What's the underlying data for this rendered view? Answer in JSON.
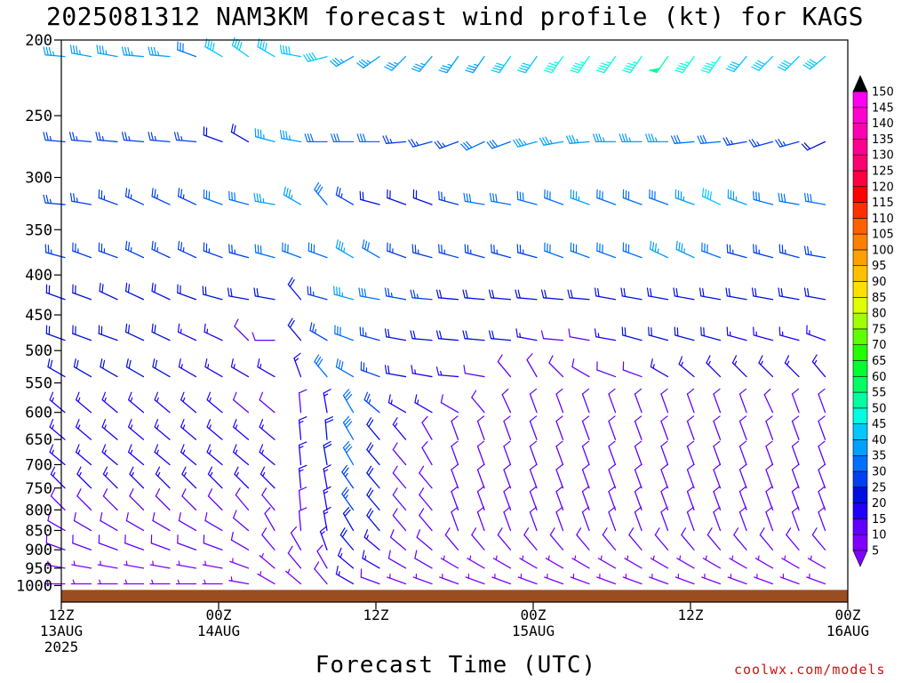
{
  "chart_data": {
    "type": "wind-profile",
    "title": "2025081312 NAM3KM forecast wind profile (kt) for KAGS",
    "xlabel": "Forecast Time (UTC)",
    "ylabel": "",
    "credit": "coolwx.com/models",
    "y_ticks": [
      200,
      250,
      300,
      350,
      400,
      450,
      500,
      550,
      600,
      650,
      700,
      750,
      800,
      850,
      900,
      950,
      1000
    ],
    "ylim": [
      200,
      1050
    ],
    "y_scale": "log-pressure",
    "x_ticks": [
      {
        "hour": 0,
        "line1": "12Z",
        "line2": "13AUG",
        "line3": "2025"
      },
      {
        "hour": 12,
        "line1": "00Z",
        "line2": "14AUG",
        "line3": ""
      },
      {
        "hour": 24,
        "line1": "12Z",
        "line2": "",
        "line3": ""
      },
      {
        "hour": 36,
        "line1": "00Z",
        "line2": "15AUG",
        "line3": ""
      },
      {
        "hour": 48,
        "line1": "12Z",
        "line2": "",
        "line3": ""
      },
      {
        "hour": 60,
        "line1": "00Z",
        "line2": "16AUG",
        "line3": ""
      }
    ],
    "xlim": [
      0,
      60
    ],
    "colorbar": {
      "values": [
        5,
        10,
        15,
        20,
        25,
        30,
        35,
        40,
        45,
        50,
        55,
        60,
        65,
        70,
        75,
        80,
        85,
        90,
        95,
        100,
        105,
        110,
        115,
        120,
        125,
        130,
        135,
        140,
        145,
        150
      ],
      "colors": [
        "#8000ff",
        "#6000ff",
        "#2000ff",
        "#0010e0",
        "#0040f0",
        "#0070ff",
        "#00a0ff",
        "#00c8ff",
        "#00ffe0",
        "#00ffa0",
        "#00ff60",
        "#00ff30",
        "#20ff00",
        "#60ff00",
        "#a0ff00",
        "#e0ff00",
        "#ffe000",
        "#ffc000",
        "#ffa000",
        "#ff8000",
        "#ff6000",
        "#ff3000",
        "#ff0000",
        "#ff0040",
        "#ff0070",
        "#ff0090",
        "#ff00b0",
        "#ff00d0",
        "#ff00f0",
        "#000000"
      ]
    },
    "ground_level_hpa": 1013,
    "ground_color": "#9b4d22",
    "levels": [
      {
        "p": 210,
        "speed": [
          36,
          36,
          35,
          35,
          34,
          32,
          38,
          40,
          41,
          40,
          38,
          36,
          35,
          34,
          33,
          35,
          37,
          38,
          42,
          44,
          45,
          46,
          47,
          48,
          45,
          44,
          42,
          40,
          38,
          38,
          36
        ],
        "dir": [
          275,
          280,
          280,
          275,
          275,
          290,
          300,
          305,
          300,
          280,
          255,
          240,
          235,
          225,
          220,
          215,
          215,
          215,
          215,
          215,
          215,
          215,
          215,
          215,
          215,
          215,
          220,
          225,
          225,
          230,
          235
        ]
      },
      {
        "p": 270,
        "speed": [
          25,
          24,
          23,
          24,
          25,
          25,
          18,
          20,
          34,
          35,
          32,
          30,
          28,
          26,
          24,
          24,
          30,
          32,
          33,
          34,
          35,
          36,
          36,
          34,
          30,
          28,
          27,
          26,
          25,
          22,
          30
        ],
        "dir": [
          275,
          275,
          275,
          275,
          275,
          275,
          290,
          300,
          285,
          280,
          270,
          270,
          270,
          265,
          255,
          250,
          245,
          250,
          255,
          260,
          265,
          270,
          270,
          270,
          265,
          265,
          260,
          255,
          255,
          245,
          245
        ]
      },
      {
        "p": 325,
        "speed": [
          27,
          26,
          25,
          25,
          24,
          26,
          28,
          30,
          33,
          36,
          30,
          25,
          22,
          22,
          22,
          24,
          28,
          30,
          30,
          32,
          34,
          32,
          30,
          32,
          36,
          40,
          34,
          32,
          30,
          30,
          28
        ],
        "dir": [
          275,
          280,
          290,
          295,
          295,
          295,
          290,
          285,
          280,
          300,
          320,
          300,
          285,
          290,
          290,
          285,
          280,
          280,
          285,
          290,
          290,
          290,
          290,
          290,
          290,
          295,
          290,
          285,
          280,
          280,
          280
        ]
      },
      {
        "p": 380,
        "speed": [
          25,
          25,
          24,
          24,
          24,
          24,
          24,
          26,
          28,
          30,
          32,
          34,
          30,
          26,
          26,
          26,
          26,
          26,
          27,
          28,
          28,
          30,
          32,
          34,
          34,
          30,
          26,
          26,
          24,
          25,
          25
        ],
        "dir": [
          285,
          290,
          290,
          295,
          295,
          295,
          290,
          285,
          285,
          290,
          290,
          300,
          300,
          290,
          285,
          285,
          285,
          285,
          285,
          290,
          290,
          290,
          290,
          295,
          295,
          290,
          285,
          285,
          285,
          280,
          280
        ]
      },
      {
        "p": 430,
        "speed": [
          22,
          22,
          22,
          22,
          22,
          20,
          20,
          20,
          22,
          18,
          26,
          34,
          30,
          26,
          24,
          22,
          22,
          22,
          22,
          22,
          22,
          22,
          22,
          22,
          22,
          22,
          22,
          22,
          22,
          22,
          22
        ],
        "dir": [
          290,
          290,
          295,
          295,
          295,
          290,
          285,
          280,
          280,
          320,
          285,
          285,
          280,
          280,
          275,
          275,
          275,
          275,
          275,
          275,
          275,
          280,
          280,
          280,
          280,
          280,
          280,
          280,
          280,
          280,
          280
        ]
      },
      {
        "p": 485,
        "speed": [
          20,
          20,
          20,
          20,
          18,
          16,
          16,
          12,
          10,
          20,
          26,
          30,
          24,
          22,
          20,
          20,
          20,
          18,
          14,
          12,
          12,
          16,
          18,
          18,
          18,
          18,
          16,
          16,
          16,
          16,
          16
        ],
        "dir": [
          290,
          290,
          290,
          295,
          295,
          295,
          295,
          315,
          270,
          320,
          300,
          290,
          285,
          280,
          275,
          275,
          275,
          275,
          280,
          275,
          280,
          280,
          285,
          285,
          285,
          285,
          285,
          285,
          285,
          290,
          290
        ]
      },
      {
        "p": 540,
        "speed": [
          18,
          18,
          18,
          18,
          18,
          16,
          16,
          14,
          14,
          14,
          30,
          30,
          24,
          18,
          16,
          14,
          10,
          10,
          10,
          10,
          10,
          12,
          12,
          14,
          14,
          14,
          14,
          14,
          14,
          14,
          14
        ],
        "dir": [
          300,
          300,
          300,
          300,
          300,
          300,
          300,
          300,
          300,
          340,
          320,
          300,
          290,
          280,
          280,
          275,
          280,
          320,
          330,
          315,
          300,
          290,
          290,
          300,
          310,
          315,
          315,
          315,
          315,
          320,
          320
        ]
      },
      {
        "p": 600,
        "speed": [
          15,
          15,
          15,
          15,
          15,
          14,
          14,
          12,
          12,
          12,
          14,
          28,
          24,
          16,
          14,
          12,
          10,
          10,
          10,
          10,
          10,
          10,
          10,
          10,
          10,
          10,
          10,
          10,
          10,
          10,
          10
        ],
        "dir": [
          310,
          310,
          310,
          310,
          310,
          310,
          310,
          310,
          310,
          355,
          350,
          330,
          310,
          300,
          300,
          300,
          320,
          335,
          340,
          340,
          340,
          340,
          340,
          340,
          340,
          340,
          340,
          335,
          340,
          340,
          340
        ]
      },
      {
        "p": 650,
        "speed": [
          15,
          15,
          15,
          15,
          15,
          15,
          15,
          14,
          14,
          14,
          18,
          30,
          20,
          14,
          12,
          10,
          10,
          10,
          10,
          10,
          10,
          10,
          10,
          10,
          10,
          10,
          10,
          10,
          10,
          10,
          10
        ],
        "dir": [
          310,
          310,
          310,
          310,
          310,
          310,
          310,
          310,
          310,
          355,
          355,
          330,
          320,
          320,
          330,
          340,
          340,
          340,
          340,
          340,
          340,
          340,
          340,
          340,
          340,
          340,
          340,
          340,
          340,
          340,
          340
        ]
      },
      {
        "p": 700,
        "speed": [
          15,
          15,
          15,
          15,
          15,
          15,
          15,
          14,
          14,
          14,
          18,
          28,
          20,
          12,
          10,
          10,
          10,
          10,
          10,
          10,
          10,
          10,
          10,
          10,
          10,
          10,
          10,
          10,
          10,
          10,
          10
        ],
        "dir": [
          310,
          310,
          310,
          310,
          310,
          310,
          310,
          310,
          310,
          355,
          350,
          330,
          320,
          320,
          330,
          340,
          340,
          340,
          340,
          340,
          340,
          340,
          340,
          340,
          340,
          340,
          340,
          340,
          340,
          340,
          340
        ]
      },
      {
        "p": 750,
        "speed": [
          14,
          14,
          14,
          14,
          14,
          14,
          14,
          14,
          14,
          14,
          16,
          26,
          20,
          12,
          10,
          10,
          10,
          10,
          10,
          10,
          10,
          10,
          10,
          10,
          10,
          10,
          10,
          10,
          10,
          10,
          10
        ],
        "dir": [
          315,
          315,
          315,
          315,
          315,
          315,
          315,
          315,
          315,
          355,
          350,
          325,
          320,
          320,
          320,
          340,
          340,
          340,
          340,
          340,
          340,
          340,
          340,
          340,
          340,
          340,
          340,
          340,
          340,
          340,
          340
        ]
      },
      {
        "p": 800,
        "speed": [
          12,
          12,
          12,
          12,
          12,
          12,
          12,
          12,
          12,
          12,
          14,
          24,
          20,
          12,
          10,
          10,
          10,
          10,
          10,
          10,
          10,
          10,
          10,
          10,
          10,
          10,
          10,
          10,
          10,
          10,
          10
        ],
        "dir": [
          315,
          315,
          315,
          315,
          315,
          315,
          315,
          320,
          320,
          355,
          350,
          325,
          320,
          320,
          320,
          340,
          340,
          340,
          340,
          340,
          340,
          340,
          340,
          340,
          340,
          340,
          340,
          340,
          340,
          340,
          340
        ]
      },
      {
        "p": 850,
        "speed": [
          10,
          10,
          10,
          10,
          10,
          10,
          10,
          10,
          10,
          12,
          14,
          22,
          18,
          10,
          10,
          10,
          10,
          10,
          10,
          10,
          10,
          10,
          10,
          10,
          10,
          10,
          10,
          10,
          10,
          10,
          10
        ],
        "dir": [
          300,
          300,
          300,
          300,
          300,
          300,
          300,
          310,
          330,
          355,
          350,
          330,
          320,
          320,
          320,
          340,
          340,
          340,
          340,
          340,
          340,
          340,
          340,
          340,
          340,
          340,
          340,
          340,
          340,
          340,
          340
        ]
      },
      {
        "p": 900,
        "speed": [
          8,
          8,
          8,
          8,
          8,
          8,
          8,
          8,
          8,
          10,
          14,
          20,
          16,
          10,
          10,
          8,
          8,
          8,
          8,
          8,
          8,
          8,
          8,
          8,
          8,
          8,
          8,
          8,
          8,
          8,
          8
        ],
        "dir": [
          290,
          290,
          290,
          290,
          290,
          290,
          290,
          300,
          320,
          330,
          340,
          320,
          310,
          310,
          310,
          320,
          320,
          320,
          320,
          320,
          320,
          320,
          320,
          320,
          320,
          320,
          320,
          320,
          320,
          320,
          320
        ]
      },
      {
        "p": 950,
        "speed": [
          6,
          6,
          6,
          6,
          6,
          6,
          6,
          6,
          6,
          8,
          12,
          16,
          14,
          8,
          8,
          6,
          6,
          6,
          6,
          6,
          6,
          6,
          6,
          6,
          6,
          6,
          6,
          6,
          6,
          6,
          6
        ],
        "dir": [
          280,
          280,
          280,
          280,
          280,
          280,
          280,
          290,
          310,
          320,
          330,
          310,
          300,
          300,
          300,
          300,
          300,
          300,
          300,
          300,
          300,
          300,
          300,
          300,
          300,
          300,
          300,
          300,
          300,
          300,
          300
        ]
      },
      {
        "p": 995,
        "speed": [
          5,
          5,
          5,
          5,
          5,
          5,
          5,
          5,
          5,
          6,
          10,
          14,
          12,
          6,
          6,
          5,
          5,
          5,
          5,
          5,
          5,
          5,
          5,
          5,
          5,
          5,
          5,
          5,
          5,
          5,
          5
        ],
        "dir": [
          270,
          270,
          270,
          270,
          270,
          270,
          270,
          280,
          300,
          310,
          320,
          300,
          290,
          290,
          290,
          290,
          290,
          290,
          290,
          290,
          290,
          290,
          290,
          290,
          290,
          290,
          290,
          290,
          290,
          290,
          290
        ]
      }
    ]
  }
}
